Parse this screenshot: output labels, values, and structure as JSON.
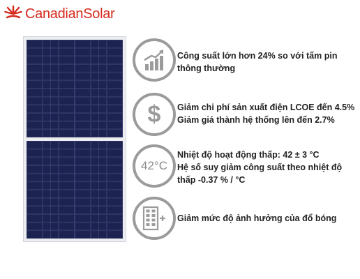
{
  "brand": {
    "name": "CanadianSolar",
    "color": "#d52b1e"
  },
  "features": [
    {
      "icon": "growth-chart-icon",
      "lines": [
        "Công suất lớn hơn 24% so với tấm pin",
        "thông thường"
      ]
    },
    {
      "icon": "dollar-icon",
      "lines": [
        "Giảm chi phí sản xuất điện LCOE đến 4.5%",
        "Giảm giá thành hệ thống lên đến 2.7%"
      ]
    },
    {
      "icon": "temperature-icon",
      "icon_text": "42°C",
      "lines": [
        "Nhiệt độ hoạt động thấp: 42 ± 3 °C",
        "Hệ số suy giảm công suất theo nhiệt độ",
        "thấp -0.37 % / °C"
      ]
    },
    {
      "icon": "shading-cells-icon",
      "lines": [
        "Giảm mức độ ảnh hưởng của đổ bóng"
      ]
    }
  ]
}
